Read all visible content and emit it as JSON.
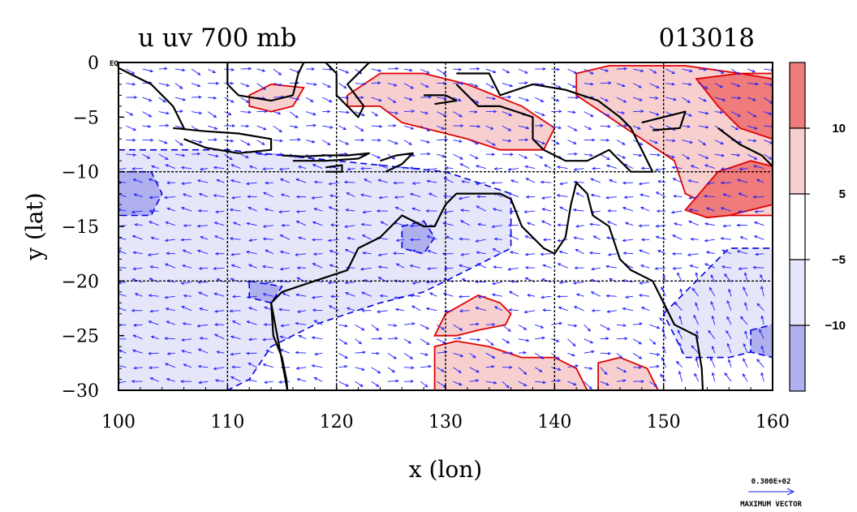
{
  "chart_data": {
    "type": "contour-vector map",
    "title_left": "u uv 700 mb",
    "title_right": "013018",
    "xlabel": "x (lon)",
    "ylabel": "y (lat)",
    "xlim": [
      100,
      160
    ],
    "ylim": [
      -30,
      0
    ],
    "x_ticks": [
      100,
      110,
      120,
      130,
      140,
      150,
      160
    ],
    "y_ticks": [
      0,
      -5,
      -10,
      -15,
      -20,
      -25,
      -30
    ],
    "x_tick_labels": [
      "100",
      "110",
      "120",
      "130",
      "140",
      "150",
      "160"
    ],
    "y_tick_labels": [
      "0",
      "−5",
      "−10",
      "−15",
      "−20",
      "−25",
      "−30"
    ],
    "equator_label": "EQ",
    "grid": true,
    "gridlines_x": [
      110,
      120,
      130,
      140,
      150
    ],
    "gridlines_y": [
      -10,
      -20
    ],
    "colorbar": {
      "tick_labels": [
        "10",
        "5",
        "−5",
        "−10"
      ],
      "tick_values": [
        10,
        5,
        -5,
        -10
      ],
      "fill_colors": [
        "#f07b7b",
        "#f8cfcf",
        "#ffffff",
        "#e6e6fa",
        "#b0b0ef"
      ]
    },
    "positive_contour_color": "#e00000",
    "negative_contour_color": "#0000e0",
    "vector_color": "#1f1fff",
    "coast_color": "#000000",
    "reference_vector": {
      "value_label": "0.300E+02",
      "caption": "MAXIMUM VECTOR"
    },
    "positive_regions": [
      {
        "label": "north-central",
        "lon_lat": [
          [
            121,
            -3
          ],
          [
            124,
            -1
          ],
          [
            128,
            -1
          ],
          [
            132,
            -2
          ],
          [
            137,
            -4
          ],
          [
            140,
            -6
          ],
          [
            139,
            -8
          ],
          [
            135,
            -8
          ],
          [
            132,
            -7
          ],
          [
            128,
            -6
          ],
          [
            126,
            -5.5
          ],
          [
            124,
            -4
          ],
          [
            121,
            -4
          ]
        ]
      },
      {
        "label": "northeast",
        "lon_lat": [
          [
            142,
            -1
          ],
          [
            145,
            -0.3
          ],
          [
            152,
            -0.3
          ],
          [
            157,
            -1
          ],
          [
            160,
            -1
          ],
          [
            160,
            -14
          ],
          [
            156,
            -14
          ],
          [
            154,
            -13
          ],
          [
            152,
            -12
          ],
          [
            151,
            -9
          ],
          [
            148,
            -7
          ],
          [
            145,
            -5
          ],
          [
            142,
            -3
          ]
        ]
      },
      {
        "label": "west-australia",
        "lon_lat": [
          [
            129,
            -25
          ],
          [
            130,
            -23
          ],
          [
            133,
            -21.3
          ],
          [
            135,
            -22
          ],
          [
            136,
            -23
          ],
          [
            135.5,
            -24
          ],
          [
            133,
            -24.5
          ],
          [
            131,
            -25
          ]
        ]
      },
      {
        "label": "south-central",
        "lon_lat": [
          [
            129,
            -29.3
          ],
          [
            129,
            -26
          ],
          [
            131,
            -25.5
          ],
          [
            134,
            -26
          ],
          [
            137,
            -27
          ],
          [
            140,
            -27
          ],
          [
            142,
            -28
          ],
          [
            143,
            -30
          ],
          [
            129,
            -30
          ]
        ]
      },
      {
        "label": "south-east",
        "lon_lat": [
          [
            144,
            -27.5
          ],
          [
            146,
            -27
          ],
          [
            148.5,
            -28
          ],
          [
            149.5,
            -30
          ],
          [
            144,
            -30
          ]
        ]
      },
      {
        "label": "north-small",
        "lon_lat": [
          [
            112,
            -3
          ],
          [
            114,
            -2
          ],
          [
            117,
            -2.3
          ],
          [
            116,
            -4
          ],
          [
            114,
            -4.5
          ],
          [
            112,
            -4
          ]
        ]
      }
    ],
    "strong_positive_regions": [
      {
        "label": "northeast-core",
        "lon_lat": [
          [
            153,
            -1.5
          ],
          [
            157,
            -1
          ],
          [
            160,
            -1.5
          ],
          [
            160,
            -7
          ],
          [
            157,
            -6
          ],
          [
            155,
            -4
          ]
        ]
      },
      {
        "label": "southeast-core",
        "lon_lat": [
          [
            152,
            -13.5
          ],
          [
            155,
            -10
          ],
          [
            158,
            -9
          ],
          [
            160,
            -9.5
          ],
          [
            160,
            -13
          ],
          [
            156,
            -14
          ],
          [
            154,
            -14.2
          ]
        ]
      }
    ],
    "negative_regions": [
      {
        "label": "west-band",
        "lon_lat": [
          [
            100,
            -8
          ],
          [
            110,
            -8
          ],
          [
            120,
            -9
          ],
          [
            130,
            -10
          ],
          [
            136,
            -12
          ],
          [
            136,
            -17
          ],
          [
            132,
            -19
          ],
          [
            128,
            -21
          ],
          [
            124,
            -22
          ],
          [
            118,
            -24
          ],
          [
            114,
            -26
          ],
          [
            112,
            -29
          ],
          [
            110,
            -30
          ],
          [
            100,
            -30
          ]
        ]
      },
      {
        "label": "east-band",
        "lon_lat": [
          [
            150,
            -23
          ],
          [
            154,
            -19
          ],
          [
            156,
            -17
          ],
          [
            160,
            -17
          ],
          [
            160,
            -26
          ],
          [
            156,
            -27
          ],
          [
            152,
            -27
          ]
        ]
      }
    ],
    "strong_negative_regions": [
      {
        "label": "far-west",
        "lon_lat": [
          [
            100,
            -10
          ],
          [
            103,
            -10
          ],
          [
            104,
            -12
          ],
          [
            103,
            -14
          ],
          [
            100,
            -14
          ]
        ]
      },
      {
        "label": "central-west",
        "lon_lat": [
          [
            126,
            -15
          ],
          [
            128,
            -14.5
          ],
          [
            129,
            -16
          ],
          [
            128,
            -17.5
          ],
          [
            126,
            -17
          ]
        ]
      },
      {
        "label": "southwest-coast",
        "lon_lat": [
          [
            112,
            -20
          ],
          [
            115,
            -20.5
          ],
          [
            114,
            -22
          ],
          [
            112,
            -21.5
          ]
        ]
      },
      {
        "label": "far-east",
        "lon_lat": [
          [
            158,
            -24.5
          ],
          [
            160,
            -24
          ],
          [
            160,
            -27
          ],
          [
            158,
            -26.5
          ]
        ]
      }
    ],
    "coastlines": [
      {
        "label": "australia",
        "lon_lat": [
          [
            114,
            -22
          ],
          [
            114.2,
            -25
          ],
          [
            115,
            -27
          ],
          [
            115.4,
            -29
          ],
          [
            115.5,
            -30
          ],
          [
            114,
            -22
          ],
          [
            115,
            -21
          ],
          [
            118,
            -20
          ],
          [
            121,
            -19
          ],
          [
            122,
            -17
          ],
          [
            124,
            -16
          ],
          [
            126,
            -14
          ],
          [
            128,
            -15
          ],
          [
            129,
            -15
          ],
          [
            130,
            -13
          ],
          [
            131,
            -12
          ],
          [
            133,
            -12
          ],
          [
            135,
            -12
          ],
          [
            136,
            -12.5
          ],
          [
            137,
            -15
          ],
          [
            139,
            -17
          ],
          [
            140,
            -17.5
          ],
          [
            141,
            -16
          ],
          [
            141.5,
            -13
          ],
          [
            142,
            -11
          ],
          [
            143,
            -12
          ],
          [
            143.5,
            -14
          ],
          [
            145,
            -15
          ],
          [
            146,
            -18
          ],
          [
            147,
            -19
          ],
          [
            149,
            -20
          ],
          [
            150,
            -22
          ],
          [
            151,
            -24
          ],
          [
            153,
            -25
          ],
          [
            153.5,
            -28
          ],
          [
            153.6,
            -30
          ]
        ]
      },
      {
        "label": "new-guinea",
        "lon_lat": [
          [
            131,
            -1
          ],
          [
            134,
            -1
          ],
          [
            135,
            -3
          ],
          [
            138,
            -2
          ],
          [
            141,
            -2.5
          ],
          [
            144,
            -3.5
          ],
          [
            146,
            -5
          ],
          [
            147,
            -6
          ],
          [
            148,
            -8
          ],
          [
            149,
            -10
          ],
          [
            147,
            -10
          ],
          [
            145,
            -8
          ],
          [
            143,
            -9
          ],
          [
            141,
            -9
          ],
          [
            139,
            -8
          ],
          [
            138,
            -7
          ],
          [
            138,
            -5
          ],
          [
            135,
            -4
          ],
          [
            133,
            -4
          ],
          [
            131,
            -2
          ]
        ]
      },
      {
        "label": "java",
        "lon_lat": [
          [
            105,
            -6
          ],
          [
            108,
            -6.3
          ],
          [
            111,
            -6.5
          ],
          [
            114,
            -7
          ],
          [
            114,
            -8
          ],
          [
            111,
            -8.3
          ],
          [
            108,
            -7.8
          ],
          [
            106,
            -7
          ]
        ]
      },
      {
        "label": "sumatra",
        "lon_lat": [
          [
            100,
            -0.5
          ],
          [
            101,
            -1
          ],
          [
            103,
            -2
          ],
          [
            105,
            -4
          ],
          [
            106,
            -6
          ]
        ]
      },
      {
        "label": "borneo",
        "lon_lat": [
          [
            110,
            0
          ],
          [
            110,
            -2
          ],
          [
            111,
            -3
          ],
          [
            114,
            -3.5
          ],
          [
            116,
            -3
          ],
          [
            116.5,
            -1
          ],
          [
            117,
            0
          ]
        ]
      },
      {
        "label": "sulawesi",
        "lon_lat": [
          [
            119,
            0
          ],
          [
            120,
            -1
          ],
          [
            120,
            -3
          ],
          [
            121,
            -4
          ],
          [
            122,
            -5
          ],
          [
            122.5,
            -4
          ],
          [
            121,
            -2
          ],
          [
            122,
            -1
          ],
          [
            123,
            0
          ]
        ]
      },
      {
        "label": "timor",
        "lon_lat": [
          [
            124,
            -9
          ],
          [
            125.5,
            -8.5
          ],
          [
            127,
            -8.3
          ],
          [
            126,
            -9.3
          ],
          [
            124.5,
            -10
          ]
        ]
      },
      {
        "label": "flores",
        "lon_lat": [
          [
            115,
            -8.5
          ],
          [
            117,
            -8.6
          ],
          [
            119,
            -8.5
          ],
          [
            121,
            -8.5
          ],
          [
            123,
            -8.3
          ],
          [
            122,
            -8.8
          ],
          [
            119,
            -9
          ],
          [
            116,
            -9
          ]
        ]
      },
      {
        "label": "sumba",
        "lon_lat": [
          [
            119,
            -9.6
          ],
          [
            120.5,
            -9.4
          ],
          [
            120.5,
            -10
          ],
          [
            119,
            -10
          ]
        ]
      },
      {
        "label": "seram",
        "lon_lat": [
          [
            128,
            -3
          ],
          [
            130,
            -3
          ],
          [
            131,
            -3.5
          ],
          [
            129,
            -3.8
          ]
        ]
      },
      {
        "label": "new-britain",
        "lon_lat": [
          [
            148,
            -5.5
          ],
          [
            150,
            -5
          ],
          [
            152,
            -4.5
          ],
          [
            151.5,
            -6
          ],
          [
            149,
            -6.2
          ]
        ]
      },
      {
        "label": "solomons",
        "lon_lat": [
          [
            155,
            -6
          ],
          [
            157,
            -7.5
          ],
          [
            159,
            -8.5
          ],
          [
            160,
            -9.5
          ]
        ]
      }
    ]
  }
}
